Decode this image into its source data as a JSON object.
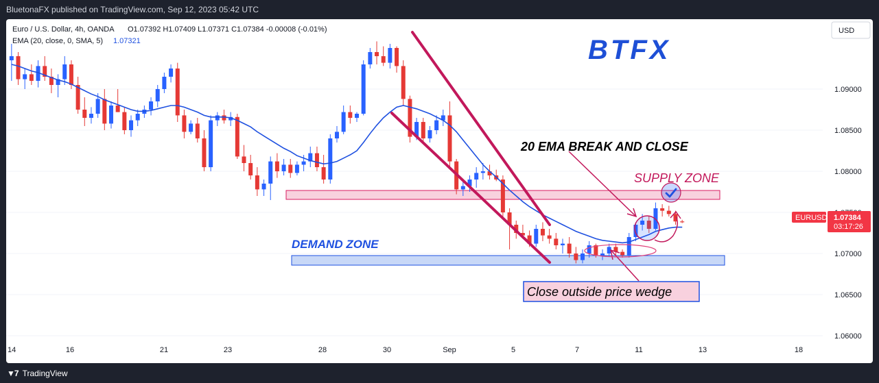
{
  "header": {
    "publish_line": "BluetonaFX published on TradingView.com, Sep 12, 2023 05:42 UTC"
  },
  "footer": {
    "brand": "TradingView"
  },
  "legend": {
    "symbol_line": "Euro / U.S. Dollar, 4h, OANDA",
    "ohlc": "O1.07392  H1.07409  L1.07371  C1.07384  -0.00008 (-0.01%)",
    "ema_label": "EMA (20, close, 0, SMA, 5)",
    "ema_value": "1.07321"
  },
  "currency_button": "USD",
  "logo": "BTFX",
  "price_tag": {
    "symbol": "EURUSD",
    "price": "1.07384",
    "countdown": "03:17:26"
  },
  "annotations": {
    "ema_break": "20 EMA BREAK AND CLOSE",
    "supply_zone": "SUPPLY ZONE",
    "demand_zone": "DEMAND ZONE",
    "close_outside": "Close outside price wedge"
  },
  "colors": {
    "up": "#2962ff",
    "down": "#e53935",
    "ema": "#1e50e0",
    "wedge": "#c2185b",
    "supply_fill": "#f8bbd0",
    "demand_fill": "#bbd0f5"
  },
  "chart_data": {
    "type": "candlestick",
    "title": "Euro / U.S. Dollar, 4h, OANDA",
    "ylim": [
      1.0595,
      1.0985
    ],
    "y_ticks": [
      "1.09000",
      "1.08500",
      "1.08000",
      "1.07500",
      "1.07000",
      "1.06500",
      "1.06000"
    ],
    "x_ticks": [
      "14",
      "16",
      "21",
      "23",
      "28",
      "30",
      "Sep",
      "5",
      "7",
      "11",
      "13",
      "18"
    ],
    "last_price": 1.07384,
    "ema_last": 1.07321,
    "zones": [
      {
        "name": "SUPPLY ZONE",
        "low": 1.0755,
        "high": 1.0767
      },
      {
        "name": "DEMAND ZONE",
        "low": 1.0686,
        "high": 1.0697
      }
    ],
    "series": [
      {
        "name": "EURUSD",
        "candles": [
          [
            1.0935,
            1.0955,
            1.091,
            1.094
          ],
          [
            1.094,
            1.0945,
            1.0905,
            1.0912
          ],
          [
            1.0912,
            1.0925,
            1.09,
            1.0918
          ],
          [
            1.0918,
            1.093,
            1.0905,
            1.091
          ],
          [
            1.091,
            1.0935,
            1.0902,
            1.0928
          ],
          [
            1.0928,
            1.094,
            1.091,
            1.0915
          ],
          [
            1.0915,
            1.0925,
            1.0895,
            1.0905
          ],
          [
            1.0905,
            1.0918,
            1.089,
            1.0912
          ],
          [
            1.0912,
            1.094,
            1.0905,
            1.093
          ],
          [
            1.093,
            1.0935,
            1.09,
            1.0905
          ],
          [
            1.0905,
            1.0915,
            1.087,
            1.0875
          ],
          [
            1.0875,
            1.089,
            1.0855,
            1.0865
          ],
          [
            1.0865,
            1.0878,
            1.0858,
            1.087
          ],
          [
            1.087,
            1.0895,
            1.0865,
            1.0888
          ],
          [
            1.0888,
            1.09,
            1.085,
            1.0858
          ],
          [
            1.0858,
            1.0885,
            1.0852,
            1.088
          ],
          [
            1.088,
            1.09,
            1.0872,
            1.0872
          ],
          [
            1.0872,
            1.0878,
            1.0845,
            1.085
          ],
          [
            1.085,
            1.0868,
            1.0842,
            1.0862
          ],
          [
            1.0862,
            1.0875,
            1.0855,
            1.087
          ],
          [
            1.087,
            1.088,
            1.0865,
            1.0875
          ],
          [
            1.0875,
            1.089,
            1.0868,
            1.0885
          ],
          [
            1.0885,
            1.0905,
            1.0878,
            1.09
          ],
          [
            1.09,
            1.092,
            1.0895,
            1.0915
          ],
          [
            1.0915,
            1.093,
            1.0908,
            1.0925
          ],
          [
            1.0925,
            1.0932,
            1.086,
            1.0868
          ],
          [
            1.0868,
            1.0875,
            1.084,
            1.0848
          ],
          [
            1.0848,
            1.0862,
            1.0845,
            1.0858
          ],
          [
            1.0858,
            1.0865,
            1.0835,
            1.084
          ],
          [
            1.084,
            1.085,
            1.08,
            1.0805
          ],
          [
            1.0805,
            1.0868,
            1.08,
            1.0862
          ],
          [
            1.0862,
            1.0872,
            1.0855,
            1.0868
          ],
          [
            1.0868,
            1.0875,
            1.0858,
            1.0862
          ],
          [
            1.0862,
            1.0872,
            1.0855,
            1.0866
          ],
          [
            1.0866,
            1.087,
            1.0815,
            1.0818
          ],
          [
            1.0818,
            1.0832,
            1.08,
            1.081
          ],
          [
            1.081,
            1.082,
            1.079,
            1.0795
          ],
          [
            1.0795,
            1.0805,
            1.077,
            1.0778
          ],
          [
            1.0778,
            1.079,
            1.077,
            1.0785
          ],
          [
            1.0785,
            1.0818,
            1.0765,
            1.0812
          ],
          [
            1.0812,
            1.0822,
            1.0792,
            1.08
          ],
          [
            1.08,
            1.0815,
            1.0795,
            1.0808
          ],
          [
            1.0808,
            1.0815,
            1.0792,
            1.0798
          ],
          [
            1.0798,
            1.0812,
            1.0795,
            1.0808
          ],
          [
            1.0808,
            1.082,
            1.08,
            1.0812
          ],
          [
            1.0812,
            1.083,
            1.0805,
            1.0822
          ],
          [
            1.0822,
            1.083,
            1.08,
            1.0805
          ],
          [
            1.0805,
            1.082,
            1.0785,
            1.079
          ],
          [
            1.079,
            1.0845,
            1.0785,
            1.084
          ],
          [
            1.084,
            1.0855,
            1.0835,
            1.0848
          ],
          [
            1.0848,
            1.088,
            1.0845,
            1.0872
          ],
          [
            1.0872,
            1.088,
            1.0858,
            1.0865
          ],
          [
            1.0865,
            1.0872,
            1.086,
            1.087
          ],
          [
            1.087,
            1.0935,
            1.0868,
            1.093
          ],
          [
            1.093,
            1.095,
            1.0925,
            1.0945
          ],
          [
            1.0945,
            1.0958,
            1.093,
            1.094
          ],
          [
            1.094,
            1.0952,
            1.0928,
            1.0932
          ],
          [
            1.0932,
            1.0955,
            1.0925,
            1.095
          ],
          [
            1.095,
            1.0952,
            1.092,
            1.0928
          ],
          [
            1.0928,
            1.0935,
            1.088,
            1.0888
          ],
          [
            1.0888,
            1.0892,
            1.0835,
            1.0842
          ],
          [
            1.0842,
            1.0865,
            1.0838,
            1.086
          ],
          [
            1.086,
            1.0865,
            1.0835,
            1.084
          ],
          [
            1.084,
            1.0855,
            1.0835,
            1.085
          ],
          [
            1.085,
            1.0868,
            1.0845,
            1.0862
          ],
          [
            1.0862,
            1.0875,
            1.0855,
            1.0868
          ],
          [
            1.0868,
            1.0885,
            1.0805,
            1.0812
          ],
          [
            1.0812,
            1.0815,
            1.0772,
            1.0778
          ],
          [
            1.0778,
            1.0788,
            1.077,
            1.0782
          ],
          [
            1.0782,
            1.0795,
            1.0775,
            1.079
          ],
          [
            1.079,
            1.0805,
            1.078,
            1.0798
          ],
          [
            1.0798,
            1.081,
            1.079,
            1.08
          ],
          [
            1.08,
            1.0808,
            1.079,
            1.0795
          ],
          [
            1.0795,
            1.0802,
            1.0788,
            1.079
          ],
          [
            1.079,
            1.0795,
            1.0745,
            1.075
          ],
          [
            1.075,
            1.0755,
            1.0705,
            1.0735
          ],
          [
            1.0735,
            1.074,
            1.0718,
            1.0725
          ],
          [
            1.0725,
            1.0735,
            1.0718,
            1.0722
          ],
          [
            1.0722,
            1.0728,
            1.0708,
            1.0712
          ],
          [
            1.0712,
            1.0735,
            1.0708,
            1.073
          ],
          [
            1.073,
            1.0738,
            1.0715,
            1.0722
          ],
          [
            1.0722,
            1.073,
            1.0712,
            1.0718
          ],
          [
            1.0718,
            1.0725,
            1.0705,
            1.071
          ],
          [
            1.071,
            1.0718,
            1.07,
            1.0712
          ],
          [
            1.0712,
            1.072,
            1.0695,
            1.07
          ],
          [
            1.07,
            1.0708,
            1.0688,
            1.0692
          ],
          [
            1.0692,
            1.0705,
            1.0688,
            1.07
          ],
          [
            1.07,
            1.0715,
            1.0695,
            1.071
          ],
          [
            1.071,
            1.0712,
            1.0695,
            1.0698
          ],
          [
            1.0698,
            1.0705,
            1.0692,
            1.07
          ],
          [
            1.07,
            1.0712,
            1.0696,
            1.0708
          ],
          [
            1.0708,
            1.0712,
            1.0698,
            1.0702
          ],
          [
            1.0702,
            1.0705,
            1.0695,
            1.0698
          ],
          [
            1.0698,
            1.0725,
            1.0695,
            1.072
          ],
          [
            1.072,
            1.0738,
            1.0715,
            1.0735
          ],
          [
            1.0735,
            1.0748,
            1.0728,
            1.074
          ],
          [
            1.074,
            1.0745,
            1.0725,
            1.073
          ],
          [
            1.073,
            1.0762,
            1.0728,
            1.0755
          ],
          [
            1.0755,
            1.076,
            1.0745,
            1.0752
          ],
          [
            1.0752,
            1.0758,
            1.0745,
            1.0748
          ],
          [
            1.0748,
            1.0752,
            1.0735,
            1.0739
          ],
          [
            1.0739,
            1.0741,
            1.0737,
            1.0738
          ]
        ]
      },
      {
        "name": "EMA (20, close, 0, SMA, 5)",
        "values": [
          1.093,
          1.0928,
          1.0925,
          1.0922,
          1.092,
          1.0917,
          1.0914,
          1.0911,
          1.0909,
          1.0906,
          1.0902,
          1.0898,
          1.0894,
          1.0891,
          1.0887,
          1.0884,
          1.0881,
          1.0878,
          1.0875,
          1.0873,
          1.0873,
          1.0874,
          1.0876,
          1.0878,
          1.088,
          1.088,
          1.0878,
          1.0875,
          1.0872,
          1.0868,
          1.0866,
          1.0866,
          1.0866,
          1.0865,
          1.0862,
          1.0858,
          1.0854,
          1.0848,
          1.0843,
          1.0838,
          1.0833,
          1.0828,
          1.0824,
          1.0819,
          1.0816,
          1.0813,
          1.0811,
          1.0809,
          1.081,
          1.0812,
          1.0816,
          1.082,
          1.0825,
          1.0835,
          1.0846,
          1.0856,
          1.0865,
          1.0872,
          1.0878,
          1.088,
          1.0878,
          1.0876,
          1.0873,
          1.087,
          1.0866,
          1.0862,
          1.0856,
          1.0848,
          1.0838,
          1.0828,
          1.0818,
          1.0808,
          1.08,
          1.0793,
          1.0785,
          1.0777,
          1.077,
          1.0763,
          1.0757,
          1.0752,
          1.0747,
          1.0743,
          1.0739,
          1.0735,
          1.0731,
          1.0727,
          1.0724,
          1.0721,
          1.0718,
          1.0716,
          1.0715,
          1.0714,
          1.0713,
          1.0714,
          1.0717,
          1.072,
          1.0723,
          1.0727,
          1.0729,
          1.0731,
          1.0732,
          1.0732
        ]
      }
    ]
  }
}
